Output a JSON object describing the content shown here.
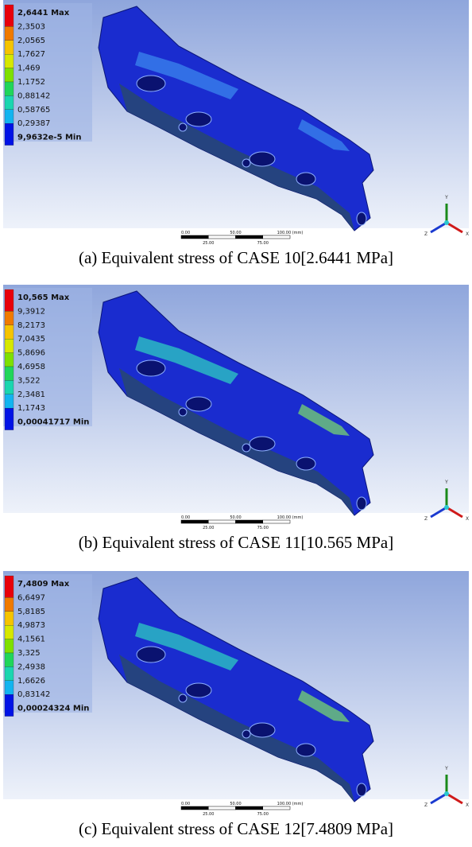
{
  "panels": [
    {
      "legend": [
        "2,6441 Max",
        "2,3503",
        "2,0565",
        "1,7627",
        "1,469",
        "1,1752",
        "0,88142",
        "0,58765",
        "0,29387",
        "9,9632e-5 Min"
      ],
      "scale_bar": [
        "0.00",
        "50.00",
        "100.00 (mm)",
        "25.00",
        "75.00"
      ],
      "triad": [
        "Y",
        "Z",
        "X"
      ],
      "caption": "(a) Equivalent stress of CASE 10[2.6441 MPa]"
    },
    {
      "legend": [
        "10,565 Max",
        "9,3912",
        "8,2173",
        "7,0435",
        "5,8696",
        "4,6958",
        "3,522",
        "2,3481",
        "1,1743",
        "0,00041717 Min"
      ],
      "scale_bar": [
        "0.00",
        "50.00",
        "100.00 (mm)",
        "25.00",
        "75.00"
      ],
      "triad": [
        "Y",
        "Z",
        "X"
      ],
      "caption": "(b) Equivalent stress of CASE 11[10.565 MPa]"
    },
    {
      "legend": [
        "7,4809 Max",
        "6,6497",
        "5,8185",
        "4,9873",
        "4,1561",
        "3,325",
        "2,4938",
        "1,6626",
        "0,83142",
        "0,00024324 Min"
      ],
      "scale_bar": [
        "0.00",
        "50.00",
        "100.00 (mm)",
        "25.00",
        "75.00"
      ],
      "triad": [
        "Y",
        "Z",
        "X"
      ],
      "caption": "(c) Equivalent stress of CASE 12[7.4809 MPa]"
    }
  ]
}
